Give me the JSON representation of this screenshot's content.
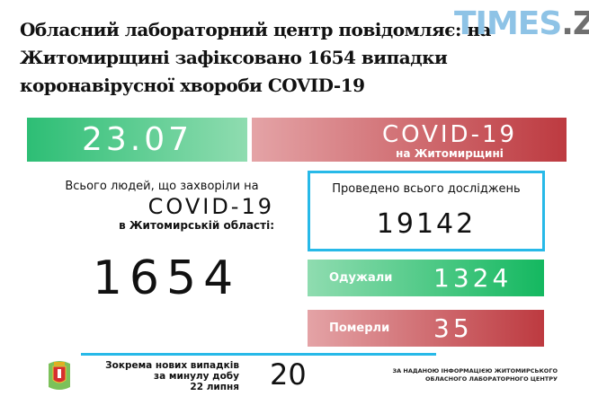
{
  "headline": "Обласний лабораторний центр повідомляє: на Житомирщині зафіксовано 1654 випадки коронавірусної хвороби COVID-19",
  "logo": {
    "part1": "TIMES",
    "part2": ".ZT"
  },
  "infographic": {
    "date": "23.07",
    "covid_title": "COVID-19",
    "covid_subtitle": "на Житомирщині",
    "total_label_1": "Всього людей, що захворіли на",
    "total_label_2": "COVID-19",
    "total_label_3": "в Житомирській області:",
    "total_value": "1654",
    "tests_label": "Проведено всього досліджень",
    "tests_value": "19142",
    "recovered_label": "Одужали",
    "recovered_value": "1324",
    "deaths_label": "Померли",
    "deaths_value": "35",
    "new_label_1": "Зокрема нових випадків",
    "new_label_2": "за минулу добу",
    "new_label_3": "22 липня",
    "new_value": "20",
    "source_1": "ЗА НАДАНОЮ ІНФОРМАЦІЄЮ ЖИТОМИРСЬКОГО",
    "source_2": "ОБЛАСНОГО ЛАБОРАТОРНОГО ЦЕНТРУ"
  },
  "colors": {
    "green": "#2dbe75",
    "red": "#bd3a40",
    "blue": "#27b9e8"
  }
}
